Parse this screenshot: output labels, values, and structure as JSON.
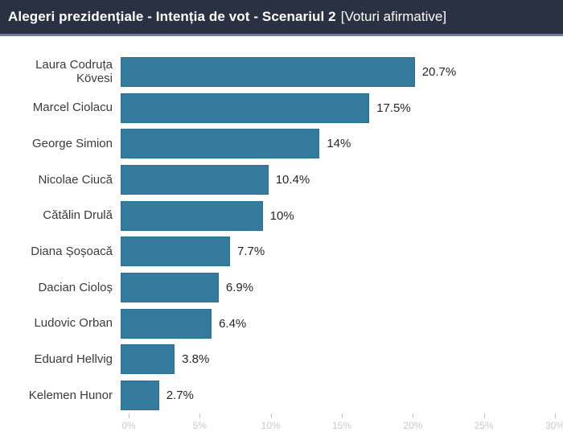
{
  "header": {
    "title": "Alegeri prezidențiale - Intenția de vot - Scenariul 2",
    "subtitle": "[Voturi afirmative]",
    "background_color": "#2a3142",
    "border_color": "#717d92",
    "text_color": "#ffffff"
  },
  "chart_data": {
    "type": "bar",
    "orientation": "horizontal",
    "title": "Alegeri prezidențiale - Intenția de vot - Scenariul 2 [Voturi afirmative]",
    "categories": [
      "Laura Codruța Kövesi",
      "Marcel Ciolacu",
      "George Simion",
      "Nicolae Ciucă",
      "Cătălin Drulă",
      "Diana Șoșoacă",
      "Dacian Cioloș",
      "Ludovic Orban",
      "Eduard Hellvig",
      "Kelemen Hunor"
    ],
    "values": [
      20.7,
      17.5,
      14,
      10.4,
      10,
      7.7,
      6.9,
      6.4,
      3.8,
      2.7
    ],
    "value_labels": [
      "20.7%",
      "17.5%",
      "14%",
      "10.4%",
      "10%",
      "7.7%",
      "6.9%",
      "6.4%",
      "3.8%",
      "2.7%"
    ],
    "xlabel": "",
    "ylabel": "",
    "xlim": [
      0,
      30
    ],
    "x_ticks": [
      "0%",
      "5%",
      "10%",
      "15%",
      "20%",
      "25%",
      "30%"
    ],
    "x_tick_values": [
      0,
      5,
      10,
      15,
      20,
      25,
      30
    ],
    "bar_color": "#337a9c",
    "grid": false,
    "legend": false
  }
}
